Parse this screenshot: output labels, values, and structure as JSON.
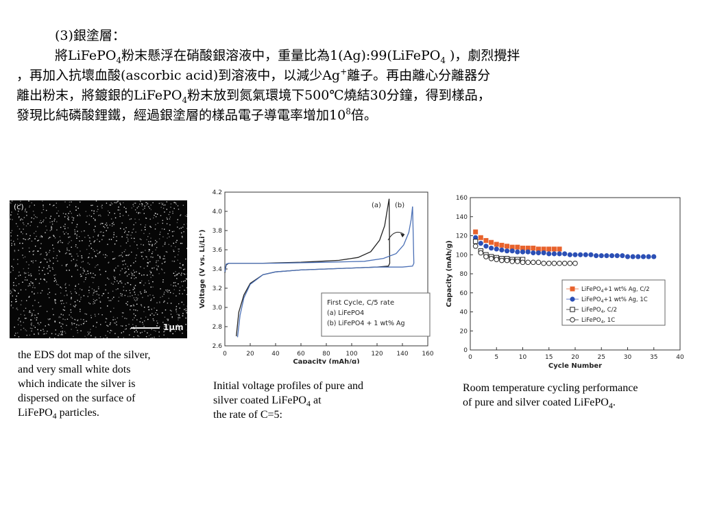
{
  "heading": "(3)銀塗層：",
  "paragraph": {
    "l1_a": "將LiFePO",
    "l1_b": "4",
    "l1_c": "粉末懸浮在硝酸銀溶液中，重量比為1(Ag):99(LiFePO",
    "l1_d": "4",
    "l1_e": " )，劇烈攪拌",
    "l2_a": "，再加入抗壞血酸(ascorbic acid)到溶液中，以減少Ag",
    "l2_b": "+",
    "l2_c": "離子。再由離心分離器分",
    "l3_a": "離出粉末，將鍍銀的LiFePO",
    "l3_b": "4",
    "l3_c": "粉末放到氮氣環境下500℃燒結30分鐘，得到樣品，",
    "l4_a": "發現比純磷酸鋰鐵，經過銀塗層的樣品電子導電率增加10",
    "l4_b": "8",
    "l4_c": "倍。"
  },
  "eds_image": {
    "panel_label": "(c)",
    "scale_label": "1μm"
  },
  "captions": {
    "eds": {
      "line1": "the EDS dot map of the silver,",
      "line2": "and very small white dots",
      "line3": "which indicate the silver is",
      "line4": "dispersed on the surface of",
      "line5_a": "LiFePO",
      "line5_b": "4",
      "line5_c": " particles."
    },
    "voltage": {
      "line1": "Initial voltage profiles of pure and",
      "line2_a": "silver coated LiFePO",
      "line2_b": "4",
      "line2_c": " at",
      "line3": "the rate of C=5:"
    },
    "cycling": {
      "line1": "Room temperature cycling performance",
      "line2_a": "of pure and silver coated LiFePO",
      "line2_b": "4",
      "line2_c": "."
    }
  },
  "chart_data": [
    {
      "type": "line",
      "xlabel": "Capacity (mAh/g)",
      "ylabel": "Voltage (V vs. Li/Li⁺)",
      "xlim": [
        0,
        160
      ],
      "ylim": [
        2.6,
        4.2
      ],
      "xticks": [
        0,
        20,
        40,
        60,
        80,
        100,
        120,
        140,
        160
      ],
      "yticks": [
        2.6,
        2.8,
        3.0,
        3.2,
        3.4,
        3.6,
        3.8,
        4.0,
        4.2
      ],
      "legend_position": "bottom-right",
      "legend_title": "First Cycle, C/5 rate",
      "legend_entries": [
        "(a) LiFePO4",
        "(b) LiFePO4 + 1 wt% Ag"
      ],
      "annotations": [
        "(a)",
        "(b)"
      ],
      "series": [
        {
          "name": "(a) LiFePO4",
          "color": "#222222",
          "charge": [
            [
              0,
              3.36
            ],
            [
              1,
              3.44
            ],
            [
              3,
              3.46
            ],
            [
              10,
              3.46
            ],
            [
              30,
              3.46
            ],
            [
              60,
              3.47
            ],
            [
              90,
              3.49
            ],
            [
              105,
              3.52
            ],
            [
              115,
              3.58
            ],
            [
              122,
              3.7
            ],
            [
              126,
              3.85
            ],
            [
              128.5,
              4.05
            ],
            [
              129.5,
              4.13
            ]
          ],
          "discharge": [
            [
              129.5,
              4.13
            ],
            [
              130,
              3.46
            ],
            [
              129,
              3.43
            ],
            [
              120,
              3.42
            ],
            [
              100,
              3.41
            ],
            [
              80,
              3.4
            ],
            [
              60,
              3.39
            ],
            [
              40,
              3.37
            ],
            [
              30,
              3.34
            ],
            [
              20,
              3.25
            ],
            [
              15,
              3.13
            ],
            [
              11,
              2.95
            ],
            [
              9,
              2.7
            ]
          ]
        },
        {
          "name": "(b) LiFePO4 + 1 wt% Ag",
          "color": "#4a6fb5",
          "charge": [
            [
              0,
              3.37
            ],
            [
              1,
              3.45
            ],
            [
              3,
              3.46
            ],
            [
              10,
              3.46
            ],
            [
              40,
              3.46
            ],
            [
              80,
              3.47
            ],
            [
              110,
              3.48
            ],
            [
              125,
              3.51
            ],
            [
              135,
              3.56
            ],
            [
              141,
              3.65
            ],
            [
              145,
              3.78
            ],
            [
              147,
              3.92
            ],
            [
              148,
              4.05
            ]
          ],
          "discharge": [
            [
              148,
              4.05
            ],
            [
              149,
              3.46
            ],
            [
              148,
              3.43
            ],
            [
              140,
              3.42
            ],
            [
              120,
              3.42
            ],
            [
              100,
              3.41
            ],
            [
              80,
              3.4
            ],
            [
              60,
              3.39
            ],
            [
              40,
              3.37
            ],
            [
              30,
              3.34
            ],
            [
              20,
              3.24
            ],
            [
              15,
              3.1
            ],
            [
              12,
              2.92
            ],
            [
              10,
              2.69
            ]
          ]
        }
      ]
    },
    {
      "type": "scatter",
      "xlabel": "Cycle Number",
      "ylabel": "Capacity (mAh/g)",
      "xlim": [
        0,
        40
      ],
      "ylim": [
        0,
        160
      ],
      "xticks": [
        0,
        5,
        10,
        15,
        20,
        25,
        30,
        35,
        40
      ],
      "yticks": [
        0,
        20,
        40,
        60,
        80,
        100,
        120,
        140,
        160
      ],
      "legend_position": "bottom-right",
      "series": [
        {
          "name_a": "LiFePO",
          "name_b": "4",
          "name_c": "+1 wt% Ag, C/2",
          "marker": "square-filled",
          "color": "#e8622c",
          "x": [
            1,
            2,
            3,
            4,
            5,
            6,
            7,
            8,
            9,
            10,
            11,
            12,
            13,
            14,
            15,
            16,
            17
          ],
          "y": [
            124,
            118,
            115,
            113,
            111,
            110,
            109,
            108,
            108,
            107,
            107,
            107,
            106,
            106,
            106,
            106,
            106
          ]
        },
        {
          "name_a": "LiFePO",
          "name_b": "4",
          "name_c": "+1 wt% Ag, 1C",
          "marker": "circle-filled",
          "color": "#2b4fb5",
          "x": [
            1,
            2,
            3,
            4,
            5,
            6,
            7,
            8,
            9,
            10,
            11,
            12,
            13,
            14,
            15,
            16,
            17,
            18,
            19,
            20,
            21,
            22,
            23,
            24,
            25,
            26,
            27,
            28,
            29,
            30,
            31,
            32,
            33,
            34,
            35
          ],
          "y": [
            118,
            112,
            109,
            107,
            106,
            105,
            104,
            104,
            103,
            103,
            103,
            102,
            102,
            102,
            101,
            101,
            101,
            101,
            100,
            100,
            100,
            100,
            100,
            99,
            99,
            99,
            99,
            99,
            99,
            98,
            98,
            98,
            98,
            98,
            98
          ]
        },
        {
          "name_a": "LiFePO",
          "name_b": "4",
          "name_c": ", C/2",
          "marker": "square-open",
          "color": "#222222",
          "x": [
            1,
            2,
            3,
            4,
            5,
            6,
            7,
            8,
            9,
            10
          ],
          "y": [
            114,
            104,
            100,
            98,
            97,
            96,
            96,
            95,
            95,
            95
          ]
        },
        {
          "name_a": "LiFePO",
          "name_b": "4",
          "name_c": ", 1C",
          "marker": "circle-open",
          "color": "#222222",
          "x": [
            1,
            2,
            3,
            4,
            5,
            6,
            7,
            8,
            9,
            10,
            11,
            12,
            13,
            14,
            15,
            16,
            17,
            18,
            19,
            20
          ],
          "y": [
            109,
            102,
            98,
            96,
            95,
            94,
            94,
            93,
            93,
            92,
            92,
            92,
            92,
            91,
            91,
            91,
            91,
            91,
            91,
            91
          ]
        }
      ]
    }
  ]
}
